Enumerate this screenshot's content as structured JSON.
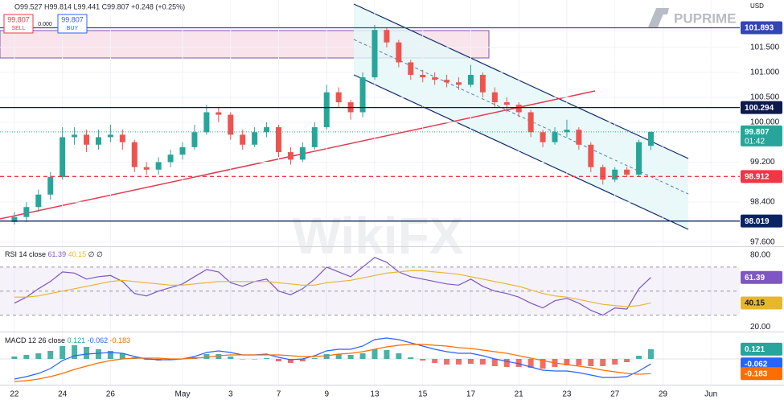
{
  "header": {
    "ohlc": "O99.527 H99.814 L99.441 C99.807 +0.248 (+0.25%)",
    "sell_price": "99.807",
    "sell": "SELL",
    "spread": "0.000",
    "buy_price": "99.807",
    "buy": "BUY",
    "brand": "PUPRIME",
    "watermark": "WikiFX",
    "currency": "USD"
  },
  "chart_data": [
    {
      "type": "candlestick",
      "x": [
        0,
        0.5,
        1,
        1.5,
        2,
        2.5,
        3,
        3.5,
        4,
        4.5,
        5,
        5.5,
        6,
        6.5,
        7,
        7.5,
        8,
        8.5,
        9,
        9.5,
        10,
        10.5,
        11,
        11.5,
        12,
        12.5,
        13,
        13.5,
        14,
        14.5,
        15,
        15.5,
        16,
        16.5,
        17,
        17.5,
        18,
        18.5,
        19,
        19.5,
        20,
        20.5,
        21,
        21.5,
        22,
        22.5,
        23,
        23.5,
        24,
        24.5,
        25,
        25.5,
        26,
        26.5
      ],
      "open": [
        98.0,
        98.1,
        98.3,
        98.55,
        98.9,
        99.7,
        99.75,
        99.55,
        99.7,
        99.75,
        99.6,
        99.1,
        99.05,
        99.2,
        99.35,
        99.5,
        99.8,
        100.2,
        100.15,
        99.75,
        99.55,
        99.8,
        99.9,
        99.4,
        99.25,
        99.5,
        99.9,
        100.6,
        100.4,
        100.2,
        100.9,
        101.85,
        101.6,
        101.2,
        100.95,
        100.9,
        100.85,
        100.8,
        100.75,
        100.95,
        100.6,
        100.4,
        100.35,
        100.2,
        99.8,
        99.6,
        99.8,
        99.85,
        99.55,
        99.1,
        98.85,
        99.05,
        98.95,
        99.527
      ],
      "high": [
        98.2,
        98.4,
        98.65,
        99.0,
        99.9,
        99.9,
        99.85,
        99.85,
        99.95,
        99.85,
        99.65,
        99.2,
        99.3,
        99.45,
        99.6,
        99.95,
        100.35,
        100.3,
        100.2,
        99.85,
        99.9,
        100.0,
        99.95,
        99.5,
        99.6,
        100.0,
        100.75,
        100.7,
        100.45,
        101.0,
        101.95,
        101.9,
        101.65,
        101.25,
        101.05,
        101.0,
        100.95,
        100.9,
        101.15,
        101.0,
        100.7,
        100.5,
        100.4,
        100.25,
        99.85,
        99.9,
        100.05,
        99.9,
        99.6,
        99.15,
        99.1,
        99.1,
        99.65,
        99.814
      ],
      "low": [
        97.95,
        98.0,
        98.2,
        98.45,
        98.85,
        99.55,
        99.4,
        99.45,
        99.6,
        99.45,
        99.0,
        98.95,
        98.95,
        99.1,
        99.25,
        99.45,
        99.75,
        100.0,
        99.65,
        99.45,
        99.5,
        99.7,
        99.3,
        99.15,
        99.2,
        99.45,
        99.85,
        100.3,
        100.05,
        100.1,
        100.85,
        101.5,
        101.1,
        100.85,
        100.8,
        100.75,
        100.7,
        100.65,
        100.7,
        100.5,
        100.3,
        100.2,
        100.1,
        99.7,
        99.5,
        99.55,
        99.7,
        99.45,
        99.0,
        98.75,
        98.8,
        98.9,
        98.9,
        99.441
      ],
      "close": [
        98.1,
        98.3,
        98.55,
        98.9,
        99.7,
        99.75,
        99.55,
        99.7,
        99.75,
        99.6,
        99.1,
        99.05,
        99.2,
        99.35,
        99.5,
        99.8,
        100.2,
        100.15,
        99.75,
        99.55,
        99.8,
        99.9,
        99.4,
        99.25,
        99.5,
        99.9,
        100.6,
        100.4,
        100.2,
        100.9,
        101.85,
        101.6,
        101.2,
        100.95,
        100.9,
        100.85,
        100.8,
        100.75,
        100.95,
        100.6,
        100.4,
        100.35,
        100.2,
        99.8,
        99.6,
        99.8,
        99.85,
        99.55,
        99.1,
        98.85,
        99.05,
        98.95,
        99.6,
        99.807
      ],
      "up_color": "#26a69a",
      "down_color": "#ef5350",
      "xlim": [
        -0.6,
        30.2
      ],
      "ylim": [
        97.53,
        102.45
      ],
      "yticks": [
        {
          "value": 97.6,
          "label": "97.600"
        },
        {
          "value": 98.4,
          "label": "98.400"
        },
        {
          "value": 99.2,
          "label": "99.200"
        },
        {
          "value": 100,
          "label": "100.000"
        },
        {
          "value": 100.5,
          "label": "100.500"
        },
        {
          "value": 101,
          "label": "101.000"
        },
        {
          "value": 101.5,
          "label": "101.500"
        }
      ],
      "xticks": [
        {
          "value": 0,
          "label": "22"
        },
        {
          "value": 2,
          "label": "24"
        },
        {
          "value": 4,
          "label": "26"
        },
        {
          "value": 7,
          "label": "May"
        },
        {
          "value": 9,
          "label": "3"
        },
        {
          "value": 11,
          "label": "7"
        },
        {
          "value": 13,
          "label": "9"
        },
        {
          "value": 15,
          "label": "13"
        },
        {
          "value": 17,
          "label": "15"
        },
        {
          "value": 19,
          "label": "17"
        },
        {
          "value": 21,
          "label": "21"
        },
        {
          "value": 23,
          "label": "23"
        },
        {
          "value": 25,
          "label": "27"
        },
        {
          "value": 27,
          "label": "29"
        },
        {
          "value": 29,
          "label": "Jun"
        }
      ],
      "levels": [
        {
          "value": 101.893,
          "color": "#3446b4",
          "style": "solid"
        },
        {
          "value": 100.294,
          "color": "#0d1a4a",
          "style": "solid"
        },
        {
          "value": 98.912,
          "color": "#f23645",
          "style": "dashed"
        },
        {
          "value": 98.019,
          "color": "#0a2463",
          "style": "solid"
        }
      ],
      "countdown": "01:42",
      "grid": true
    },
    {
      "type": "line",
      "title": "RSI 14 close",
      "extra": "∅ ∅",
      "series": [
        {
          "color": "#7e57c2",
          "values": [
            40,
            45,
            52,
            58,
            66,
            65,
            60,
            62,
            63,
            58,
            48,
            46,
            50,
            53,
            56,
            62,
            68,
            66,
            57,
            54,
            58,
            60,
            50,
            47,
            52,
            60,
            70,
            66,
            62,
            70,
            78,
            74,
            66,
            62,
            60,
            58,
            56,
            55,
            60,
            54,
            50,
            48,
            45,
            40,
            36,
            42,
            44,
            40,
            34,
            30,
            36,
            35,
            52,
            61.39
          ]
        },
        {
          "color": "#e8b62c",
          "values": [
            45,
            45,
            46,
            48,
            50,
            52,
            54,
            56,
            58,
            59,
            58,
            57,
            56,
            55,
            55,
            56,
            57,
            58,
            58,
            58,
            58,
            58,
            57,
            56,
            55,
            55,
            57,
            58,
            59,
            61,
            63,
            65,
            66,
            67,
            67,
            66,
            65,
            64,
            62,
            60,
            58,
            56,
            54,
            51,
            48,
            46,
            45,
            43,
            41,
            39,
            38,
            37,
            38,
            40.15
          ]
        }
      ],
      "ylim": [
        17,
        86
      ],
      "yticks": [
        {
          "value": 80,
          "label": "80.00"
        },
        {
          "value": 20,
          "label": "20.00"
        }
      ],
      "hlines": [
        70,
        50,
        30
      ]
    },
    {
      "type": "macd",
      "title": "MACD 12 26 close",
      "histogram": {
        "values": [
          0.03,
          0.05,
          0.07,
          0.1,
          0.16,
          0.17,
          0.15,
          0.12,
          0.1,
          0.07,
          0.02,
          -0.01,
          -0.02,
          -0.01,
          0.0,
          0.02,
          0.06,
          0.06,
          0.03,
          0.0,
          0.0,
          0.01,
          -0.03,
          -0.05,
          -0.03,
          0.01,
          0.06,
          0.06,
          0.05,
          0.07,
          0.12,
          0.11,
          0.07,
          0.02,
          -0.02,
          -0.05,
          -0.07,
          -0.07,
          -0.06,
          -0.07,
          -0.09,
          -0.1,
          -0.1,
          -0.11,
          -0.12,
          -0.1,
          -0.08,
          -0.08,
          -0.09,
          -0.09,
          -0.07,
          -0.04,
          0.04,
          0.121
        ],
        "up_color": "#26a69a",
        "down_color": "#ef5350"
      },
      "series": [
        {
          "color": "#2962ff",
          "values": [
            -0.25,
            -0.22,
            -0.18,
            -0.12,
            -0.02,
            0.04,
            0.06,
            0.07,
            0.08,
            0.07,
            0.03,
            0.0,
            -0.01,
            -0.01,
            0.0,
            0.03,
            0.08,
            0.1,
            0.08,
            0.05,
            0.05,
            0.06,
            0.02,
            -0.01,
            0.0,
            0.04,
            0.1,
            0.12,
            0.12,
            0.16,
            0.24,
            0.26,
            0.24,
            0.2,
            0.16,
            0.12,
            0.09,
            0.07,
            0.07,
            0.04,
            0.0,
            -0.03,
            -0.06,
            -0.1,
            -0.14,
            -0.15,
            -0.15,
            -0.17,
            -0.2,
            -0.23,
            -0.23,
            -0.22,
            -0.15,
            -0.062
          ]
        },
        {
          "color": "#ff6d00",
          "values": [
            -0.28,
            -0.27,
            -0.25,
            -0.22,
            -0.18,
            -0.13,
            -0.09,
            -0.05,
            -0.02,
            0.0,
            0.01,
            0.01,
            0.01,
            0.0,
            0.0,
            0.01,
            0.02,
            0.04,
            0.05,
            0.05,
            0.05,
            0.05,
            0.05,
            0.04,
            0.03,
            0.03,
            0.04,
            0.06,
            0.07,
            0.09,
            0.12,
            0.15,
            0.17,
            0.18,
            0.18,
            0.17,
            0.16,
            0.14,
            0.13,
            0.11,
            0.09,
            0.07,
            0.04,
            0.01,
            -0.02,
            -0.05,
            -0.07,
            -0.09,
            -0.11,
            -0.14,
            -0.16,
            -0.18,
            -0.19,
            -0.183
          ]
        }
      ],
      "ylim": [
        -0.3,
        0.32
      ]
    }
  ]
}
